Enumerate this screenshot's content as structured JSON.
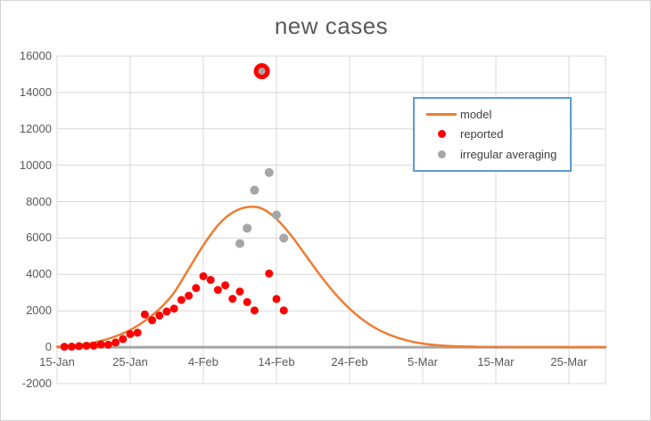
{
  "chart_data": {
    "type": "scatter",
    "title": "new cases",
    "x_axis": {
      "start_date": "15-Jan",
      "tick_labels": [
        "15-Jan",
        "25-Jan",
        "4-Feb",
        "14-Feb",
        "24-Feb",
        "5-Mar",
        "15-Mar",
        "25-Mar"
      ],
      "tick_days": [
        0,
        10,
        20,
        30,
        40,
        50,
        60,
        70
      ],
      "range_days": [
        0,
        75
      ]
    },
    "y_axis": {
      "min": -2000,
      "max": 16000,
      "step": 2000
    },
    "grid": true,
    "legend": {
      "position": "upper-right-inside",
      "border_color": "#5B9BD5",
      "items": [
        {
          "label": "model",
          "marker": "line",
          "color": "#ED7D31"
        },
        {
          "label": "reported",
          "marker": "dot",
          "color": "#FF0000"
        },
        {
          "label": "irregular averaging",
          "marker": "dot",
          "color": "#A6A6A6"
        }
      ]
    },
    "series": [
      {
        "name": "model",
        "type": "line",
        "color": "#ED7D31",
        "points_day_value": [
          [
            0,
            30
          ],
          [
            2,
            80
          ],
          [
            4,
            180
          ],
          [
            6,
            350
          ],
          [
            8,
            600
          ],
          [
            10,
            950
          ],
          [
            12,
            1450
          ],
          [
            14,
            2100
          ],
          [
            16,
            3000
          ],
          [
            18,
            4300
          ],
          [
            20,
            5600
          ],
          [
            22,
            6700
          ],
          [
            24,
            7400
          ],
          [
            26,
            7700
          ],
          [
            28,
            7620
          ],
          [
            30,
            7050
          ],
          [
            32,
            6150
          ],
          [
            34,
            5050
          ],
          [
            36,
            3950
          ],
          [
            38,
            2950
          ],
          [
            40,
            2120
          ],
          [
            42,
            1450
          ],
          [
            44,
            950
          ],
          [
            46,
            600
          ],
          [
            48,
            360
          ],
          [
            50,
            200
          ],
          [
            52,
            110
          ],
          [
            54,
            60
          ],
          [
            56,
            35
          ],
          [
            58,
            20
          ],
          [
            60,
            12
          ],
          [
            64,
            6
          ],
          [
            68,
            3
          ],
          [
            72,
            2
          ],
          [
            75,
            2
          ]
        ]
      },
      {
        "name": "reported",
        "type": "scatter",
        "color": "#FF0000",
        "points_day_value_date": [
          [
            1,
            25,
            "16-Jan"
          ],
          [
            2,
            35,
            "17-Jan"
          ],
          [
            3,
            60,
            "18-Jan"
          ],
          [
            4,
            80,
            "19-Jan"
          ],
          [
            5,
            85,
            "20-Jan"
          ],
          [
            6,
            150,
            "21-Jan"
          ],
          [
            7,
            140,
            "22-Jan"
          ],
          [
            8,
            260,
            "23-Jan"
          ],
          [
            9,
            450,
            "24-Jan"
          ],
          [
            10,
            720,
            "25-Jan"
          ],
          [
            11,
            800,
            "26-Jan"
          ],
          [
            12,
            1800,
            "27-Jan"
          ],
          [
            13,
            1480,
            "28-Jan"
          ],
          [
            14,
            1740,
            "29-Jan"
          ],
          [
            15,
            1960,
            "30-Jan"
          ],
          [
            16,
            2120,
            "31-Jan"
          ],
          [
            17,
            2600,
            "1-Feb"
          ],
          [
            18,
            2830,
            "2-Feb"
          ],
          [
            19,
            3250,
            "3-Feb"
          ],
          [
            20,
            3900,
            "4-Feb"
          ],
          [
            21,
            3700,
            "5-Feb"
          ],
          [
            22,
            3150,
            "6-Feb"
          ],
          [
            23,
            3400,
            "7-Feb"
          ],
          [
            24,
            2660,
            "8-Feb"
          ],
          [
            25,
            3060,
            "9-Feb"
          ],
          [
            26,
            2480,
            "10-Feb"
          ],
          [
            27,
            2020,
            "11-Feb"
          ],
          [
            29,
            4050,
            "13-Feb"
          ],
          [
            30,
            2650,
            "14-Feb"
          ],
          [
            31,
            2020,
            "15-Feb"
          ]
        ]
      },
      {
        "name": "irregular averaging",
        "type": "scatter",
        "color": "#A6A6A6",
        "points_day_value_date": [
          [
            25,
            5700,
            "9-Feb"
          ],
          [
            26,
            6540,
            "10-Feb"
          ],
          [
            27,
            8630,
            "11-Feb"
          ],
          [
            29,
            9600,
            "13-Feb"
          ],
          [
            30,
            7270,
            "14-Feb"
          ],
          [
            31,
            6000,
            "15-Feb"
          ]
        ]
      }
    ],
    "outlier_point": {
      "series": "reported",
      "date": "12-Feb",
      "day": 28,
      "value": 15170,
      "fill_color": "#A6A6A6",
      "ring_color": "#FF0000"
    }
  },
  "colors": {
    "background": "#FFFFFF",
    "gridline": "#D9D9D9",
    "zero_axis_line": "#A6A6A6",
    "tick_text": "#595959",
    "title_text": "#595959",
    "outer_border": "#D3D3D3"
  }
}
